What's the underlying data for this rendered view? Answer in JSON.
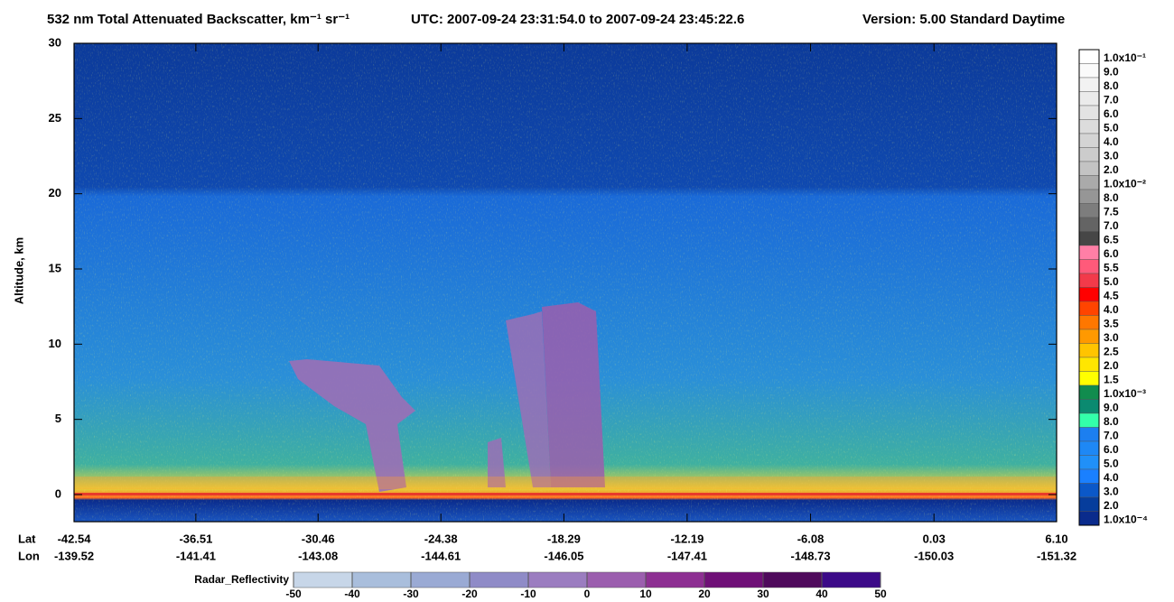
{
  "chart_data": {
    "type": "heatmap",
    "title": "532 nm Total Attenuated Backscatter, km⁻¹ sr⁻¹",
    "time_range": "UTC:  2007-09-24 23:31:54.0  to  2007-09-24 23:45:22.6",
    "version": "Version: 5.00  Standard  Daytime",
    "ylabel": "Altitude, km",
    "ylim": [
      -1.8,
      30
    ],
    "yticks": [
      0,
      5,
      10,
      15,
      20,
      25,
      30
    ],
    "xlabel": "Lat",
    "x2label": "Lon",
    "xlim": [
      -42.54,
      6.1
    ],
    "xticks": [
      -42.54,
      -36.51,
      -30.46,
      -24.38,
      -18.29,
      -12.19,
      -6.08,
      0.03,
      {
        "value": 6.1,
        "label": "6.10"
      }
    ],
    "lon": [
      -139.52,
      -141.41,
      -143.08,
      -144.61,
      -146.05,
      -147.41,
      -148.73,
      -150.03,
      -151.32
    ],
    "colorbar": {
      "labels": [
        "1.0x10⁻¹",
        "9.0",
        "8.0",
        "7.0",
        "6.0",
        "5.0",
        "4.0",
        "3.0",
        "2.0",
        "1.0x10⁻²",
        "8.0",
        "7.5",
        "7.0",
        "6.5",
        "6.0",
        "5.5",
        "5.0",
        "4.5",
        "4.0",
        "3.5",
        "3.0",
        "2.5",
        "2.0",
        "1.5",
        "1.0x10⁻³",
        "9.0",
        "8.0",
        "7.0",
        "6.0",
        "5.0",
        "4.0",
        "3.0",
        "2.0",
        "1.0x10⁻⁴"
      ],
      "colors": [
        "#ffffff",
        "#fafafa",
        "#f2f2f2",
        "#ebebeb",
        "#e3e3e3",
        "#dcdcdc",
        "#d4d4d4",
        "#cccccc",
        "#c3c3c3",
        "#aaaaaa",
        "#969696",
        "#7d7d7d",
        "#646464",
        "#464646",
        "#ff7fa6",
        "#ff5a7a",
        "#f23a4a",
        "#ff0000",
        "#ff4400",
        "#ff7700",
        "#ff9900",
        "#ffc400",
        "#ffe600",
        "#ffff00",
        "#118c4e",
        "#0b8a70",
        "#33ffaa",
        "#1c7ff0",
        "#1e88f5",
        "#2090f8",
        "#1a80ff",
        "#0b58c8",
        "#063d9c",
        "#0a2b8c"
      ]
    },
    "radar": {
      "label": "Radar_Reflectivity",
      "lim": [
        -50,
        50
      ],
      "ticks": [
        -50,
        -40,
        -30,
        -20,
        -10,
        0,
        10,
        20,
        30,
        40,
        50
      ],
      "colors": [
        "#c7d6e8",
        "#a9bedc",
        "#9aaad4",
        "#8f8bc7",
        "#9b7dc0",
        "#9b5eae",
        "#8d2f92",
        "#6f1077",
        "#4f0a5c",
        "#3c0a88"
      ]
    }
  }
}
